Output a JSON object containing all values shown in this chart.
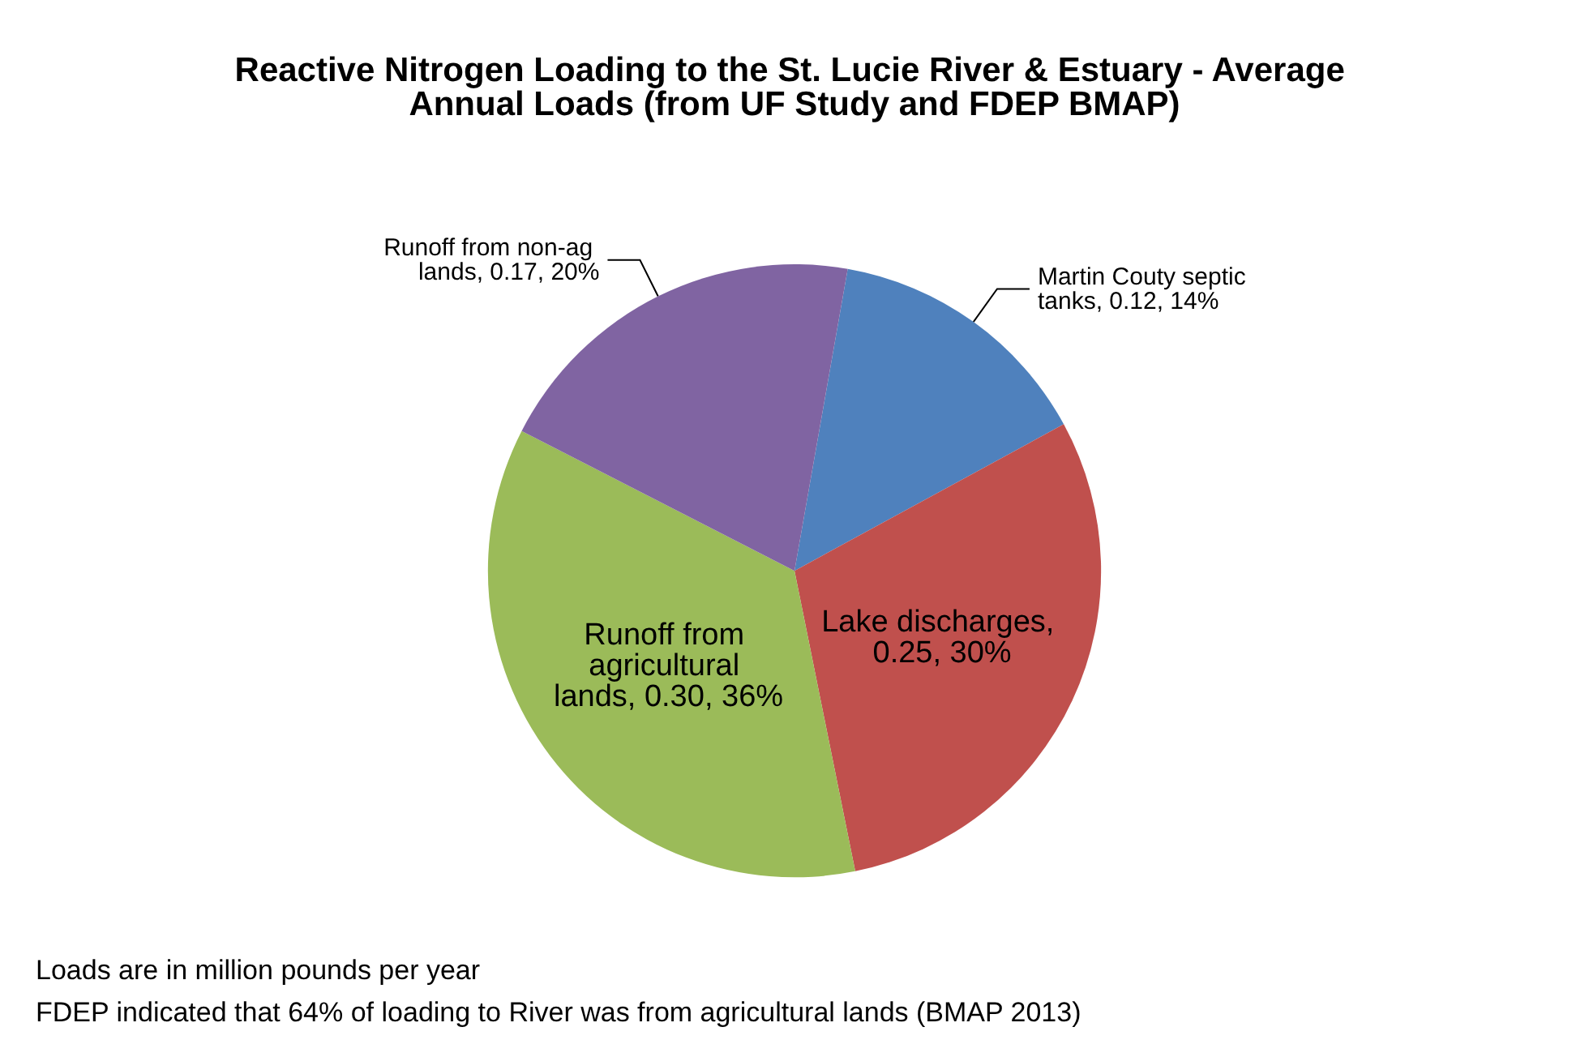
{
  "chart_data": {
    "type": "pie",
    "title": "Reactive Nitrogen Loading to the St. Lucie River & Estuary - Average Annual Loads (from UF Study and FDEP BMAP)",
    "categories": [
      "Martin Couty septic tanks, 0.12, 14%",
      "Lake discharges, 0.25, 30%",
      "Runoff from agricultural lands, 0.30, 36%",
      "Runoff from non-ag lands, 0.17, 20%"
    ],
    "values": [
      0.12,
      0.25,
      0.3,
      0.17
    ],
    "colors": [
      "#4f81bd",
      "#c0504d",
      "#9bbb59",
      "#8064a2"
    ],
    "legend": false,
    "annotations": [
      "Loads are in million pounds per year",
      "FDEP indicated that 64% of loading to River was from agricultural lands (BMAP 2013)"
    ]
  }
}
